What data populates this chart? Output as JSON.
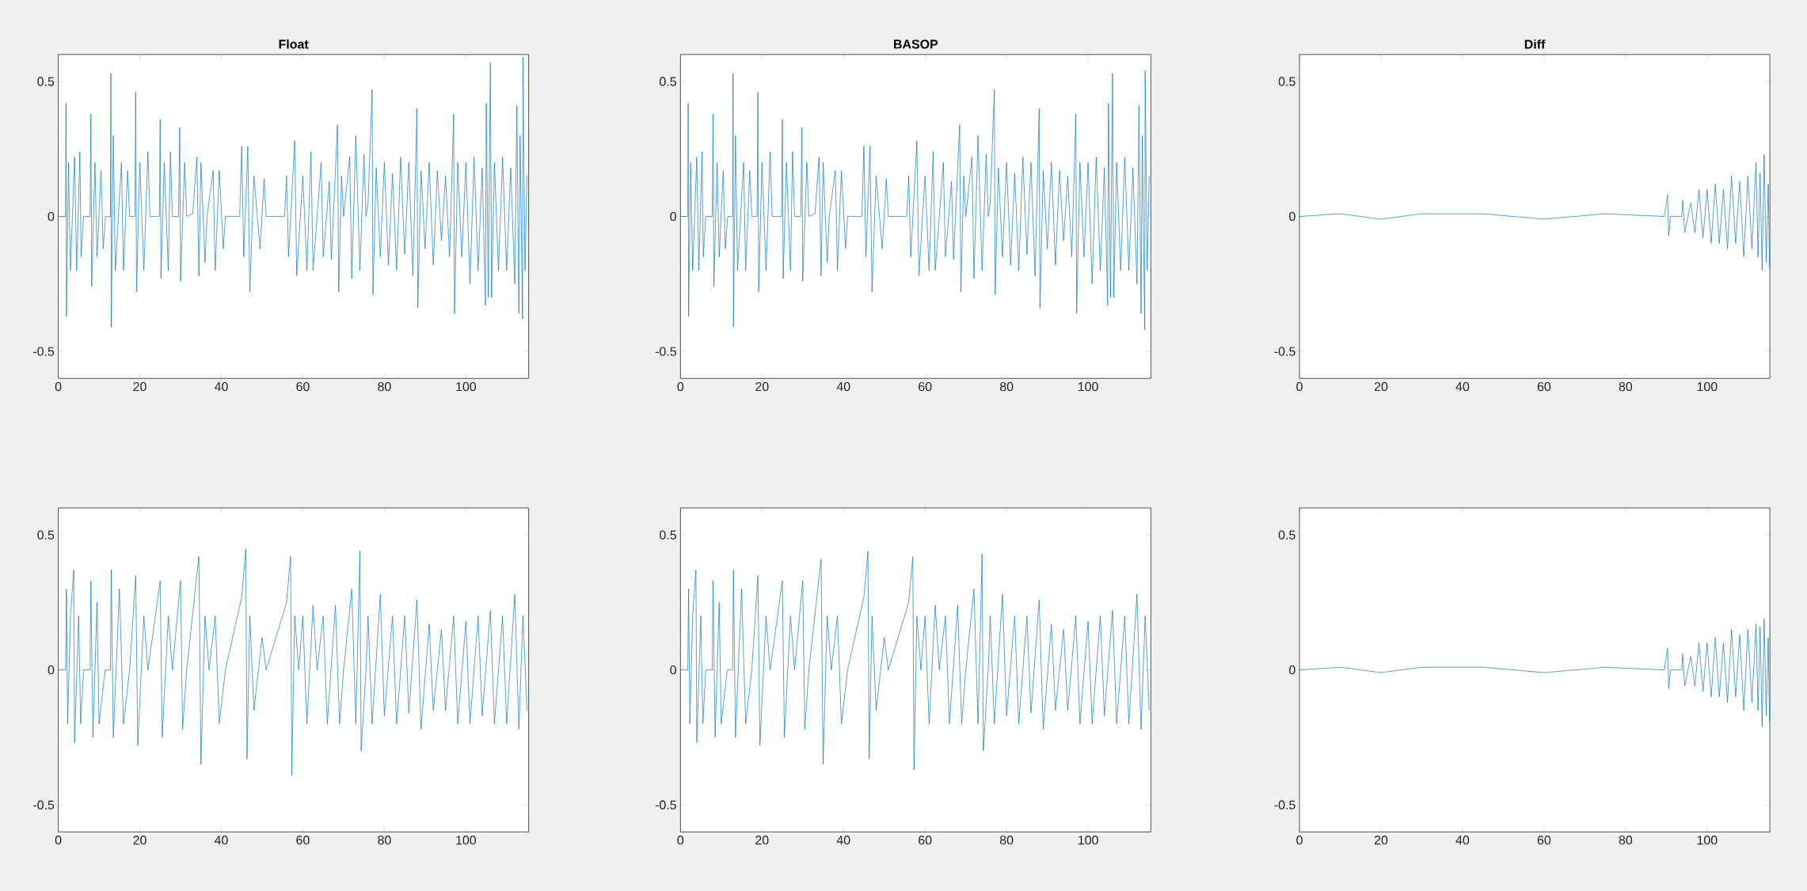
{
  "chart_data": [
    {
      "type": "line",
      "title": "Float",
      "color": "#0072bd",
      "xlim": [
        0,
        115.4
      ],
      "ylim": [
        -0.6,
        0.6
      ],
      "xticks": [
        0,
        20,
        40,
        60,
        80,
        100
      ],
      "yticks": [
        -0.5,
        0,
        0.5
      ],
      "x": [
        0,
        1.8,
        1.9,
        2.0,
        2.5,
        3,
        4,
        4.5,
        5.3,
        5.6,
        6.2,
        7.8,
        8.0,
        8.2,
        9,
        9.5,
        10.5,
        11,
        11.6,
        12.8,
        12.9,
        13.0,
        13.5,
        14,
        15.5,
        16,
        17,
        17.5,
        18.8,
        19,
        19.2,
        20,
        21,
        22,
        22.5,
        24.8,
        25,
        25.2,
        26,
        27,
        27.5,
        28,
        29.5,
        29.8,
        30,
        31,
        31.5,
        33,
        34,
        34.5,
        35,
        36,
        36.5,
        38,
        38.5,
        39.5,
        40.5,
        41,
        44.5,
        45,
        45.5,
        46.5,
        47,
        48,
        49.5,
        50.5,
        51,
        55.5,
        56,
        56.5,
        58,
        58.5,
        60,
        61,
        62,
        62.5,
        63.5,
        64.5,
        65,
        66.5,
        67,
        68.5,
        68.8,
        69.5,
        70,
        71.5,
        72,
        73,
        74,
        75,
        75.5,
        76,
        77,
        77.2,
        78,
        79,
        80,
        81,
        82,
        83,
        84,
        85,
        86,
        87,
        88,
        88.2,
        89,
        90,
        91,
        92,
        93,
        94,
        95,
        96,
        97,
        97.2,
        98,
        99,
        100,
        101,
        102,
        103,
        104,
        104.8,
        105,
        105.5,
        106,
        106.3,
        107,
        108,
        109,
        110,
        111,
        112,
        112.5,
        113,
        113.3,
        113.9,
        114,
        114.5,
        115
      ],
      "values": [
        0,
        0,
        0.42,
        -0.37,
        0.2,
        -0.2,
        0.22,
        -0.2,
        0.24,
        -0.15,
        0,
        0,
        0.38,
        -0.26,
        0.2,
        -0.15,
        0.17,
        -0.12,
        0,
        0,
        0.53,
        -0.41,
        0.3,
        -0.2,
        0.2,
        -0.2,
        0.17,
        0,
        0,
        0.46,
        -0.28,
        0.2,
        -0.2,
        0.24,
        0,
        0,
        0.36,
        -0.23,
        0.2,
        -0.2,
        0.24,
        0,
        0,
        0.33,
        -0.24,
        0.2,
        0,
        0.01,
        0.22,
        -0.22,
        0.2,
        -0.17,
        0,
        0.17,
        -0.2,
        0.17,
        -0.12,
        0,
        0,
        0.26,
        -0.15,
        0.26,
        -0.28,
        0.15,
        -0.12,
        0.14,
        0,
        0,
        0.15,
        -0.15,
        0.28,
        -0.22,
        0.15,
        -0.2,
        0.24,
        -0.2,
        0,
        0.2,
        -0.15,
        0.13,
        -0.16,
        0.34,
        -0.28,
        0.15,
        0,
        0.22,
        -0.23,
        0.3,
        -0.2,
        0.23,
        0,
        0.05,
        0.47,
        -0.29,
        0.18,
        -0.15,
        0.2,
        -0.18,
        0.16,
        -0.2,
        0.22,
        -0.14,
        0.2,
        -0.22,
        0.4,
        -0.34,
        0.17,
        -0.12,
        0.2,
        -0.18,
        0.17,
        -0.09,
        0.15,
        -0.15,
        0.38,
        -0.36,
        0.2,
        -0.15,
        0.2,
        -0.25,
        0.22,
        -0.2,
        0.18,
        -0.33,
        0.42,
        -0.3,
        0.57,
        -0.3,
        0.2,
        -0.2,
        0.22,
        -0.2,
        0.18,
        -0.25,
        0.41,
        -0.36,
        0.3,
        -0.38,
        0.59,
        -0.2,
        0.15
      ]
    },
    {
      "type": "line",
      "title": "BASOP",
      "color": "#0072bd",
      "xlim": [
        0,
        115.4
      ],
      "ylim": [
        -0.6,
        0.6
      ],
      "xticks": [
        0,
        20,
        40,
        60,
        80,
        100
      ],
      "yticks": [
        -0.5,
        0,
        0.5
      ],
      "x": [
        0,
        1.8,
        1.9,
        2.0,
        2.5,
        3,
        4,
        4.5,
        5.3,
        5.6,
        6.2,
        7.8,
        8.0,
        8.2,
        9,
        9.5,
        10.5,
        11,
        11.6,
        12.8,
        12.9,
        13.0,
        13.5,
        14,
        15.5,
        16,
        17,
        17.5,
        18.8,
        19,
        19.2,
        20,
        21,
        22,
        22.5,
        24.8,
        25,
        25.2,
        26,
        27,
        27.5,
        28,
        29.5,
        29.8,
        30,
        31,
        31.5,
        33,
        34,
        34.5,
        35,
        36,
        36.5,
        38,
        38.5,
        39.5,
        40.5,
        41,
        44.5,
        45,
        45.5,
        46.5,
        47,
        48,
        49.5,
        50.5,
        51,
        55.5,
        56,
        56.5,
        58,
        58.5,
        60,
        61,
        62,
        62.5,
        63.5,
        64.5,
        65,
        66.5,
        67,
        68.5,
        68.8,
        69.5,
        70,
        71.5,
        72,
        73,
        74,
        75,
        75.5,
        76,
        77,
        77.2,
        78,
        79,
        80,
        81,
        82,
        83,
        84,
        85,
        86,
        87,
        88,
        88.2,
        89,
        90,
        91,
        92,
        93,
        94,
        95,
        96,
        97,
        97.2,
        98,
        99,
        100,
        101,
        102,
        103,
        104,
        104.8,
        105,
        105.5,
        106,
        106.3,
        107,
        108,
        109,
        110,
        111,
        112,
        112.5,
        113,
        113.3,
        113.9,
        114,
        114.5,
        115
      ],
      "values": [
        0,
        0,
        0.42,
        -0.37,
        0.2,
        -0.2,
        0.22,
        -0.2,
        0.24,
        -0.15,
        0,
        0,
        0.38,
        -0.26,
        0.2,
        -0.15,
        0.17,
        -0.12,
        0,
        0,
        0.53,
        -0.41,
        0.3,
        -0.2,
        0.2,
        -0.2,
        0.17,
        0,
        0,
        0.46,
        -0.28,
        0.2,
        -0.2,
        0.24,
        0,
        0,
        0.36,
        -0.23,
        0.2,
        -0.2,
        0.24,
        0,
        0,
        0.33,
        -0.24,
        0.2,
        0,
        0.01,
        0.22,
        -0.22,
        0.2,
        -0.17,
        0,
        0.17,
        -0.2,
        0.17,
        -0.12,
        0,
        0,
        0.26,
        -0.15,
        0.26,
        -0.28,
        0.15,
        -0.12,
        0.14,
        0,
        0,
        0.15,
        -0.15,
        0.28,
        -0.22,
        0.15,
        -0.2,
        0.24,
        -0.2,
        0,
        0.2,
        -0.15,
        0.13,
        -0.16,
        0.34,
        -0.28,
        0.15,
        0,
        0.22,
        -0.23,
        0.3,
        -0.2,
        0.23,
        0,
        0.05,
        0.47,
        -0.29,
        0.18,
        -0.15,
        0.2,
        -0.18,
        0.16,
        -0.2,
        0.22,
        -0.14,
        0.2,
        -0.22,
        0.4,
        -0.34,
        0.17,
        -0.12,
        0.2,
        -0.18,
        0.17,
        -0.09,
        0.15,
        -0.15,
        0.38,
        -0.36,
        0.2,
        -0.15,
        0.2,
        -0.25,
        0.22,
        -0.2,
        0.18,
        -0.33,
        0.42,
        -0.3,
        0.53,
        -0.3,
        0.2,
        -0.2,
        0.22,
        -0.2,
        0.18,
        -0.25,
        0.41,
        -0.36,
        0.3,
        -0.42,
        0.54,
        -0.2,
        0.15
      ]
    },
    {
      "type": "line",
      "title": "Diff",
      "color": "#0072bd",
      "xlim": [
        0,
        115.4
      ],
      "ylim": [
        -0.6,
        0.6
      ],
      "xticks": [
        0,
        20,
        40,
        60,
        80,
        100
      ],
      "yticks": [
        -0.5,
        0,
        0.5
      ],
      "x": [
        0,
        10,
        20,
        30,
        45,
        60,
        75,
        89.5,
        90.3,
        90.6,
        91,
        93.8,
        94,
        94.5,
        96,
        97,
        98,
        99,
        100,
        101,
        102,
        103,
        104,
        105,
        106,
        107,
        108,
        109,
        110,
        111,
        112,
        112.5,
        113,
        113.5,
        114,
        114.5,
        115,
        115.3
      ],
      "values": [
        0,
        0.01,
        -0.01,
        0.01,
        0.01,
        -0.01,
        0.01,
        0,
        0.08,
        -0.07,
        0,
        0,
        0.06,
        -0.06,
        0.05,
        -0.06,
        0.1,
        -0.08,
        0.1,
        -0.1,
        0.12,
        -0.1,
        0.1,
        -0.12,
        0.15,
        -0.1,
        0.13,
        -0.15,
        0.15,
        -0.12,
        0.2,
        -0.15,
        0.16,
        -0.2,
        0.23,
        -0.17,
        0.12,
        -0.19
      ]
    },
    {
      "type": "line",
      "color": "#0072bd",
      "xlim": [
        0,
        115.4
      ],
      "ylim": [
        -0.6,
        0.6
      ],
      "xticks": [
        0,
        20,
        40,
        60,
        80,
        100
      ],
      "yticks": [
        -0.5,
        0,
        0.5
      ],
      "x": [
        0,
        1.8,
        2,
        2.3,
        3,
        3.8,
        4,
        5,
        5.5,
        6.2,
        7.8,
        8,
        8.5,
        9.5,
        10,
        11.5,
        12.8,
        13,
        13.5,
        15,
        16,
        17.5,
        19,
        19.5,
        21,
        22,
        25,
        25.5,
        27,
        28,
        30,
        30.5,
        31.5,
        34.5,
        35,
        36,
        37,
        38.5,
        39.5,
        41,
        45,
        46,
        46.3,
        47,
        48,
        50,
        51,
        56,
        57,
        57.3,
        58,
        59,
        60,
        61,
        62.5,
        63.5,
        65,
        66,
        68,
        69,
        70,
        72,
        73,
        74,
        74.3,
        75.5,
        76,
        77,
        79,
        80,
        82,
        83,
        85,
        86,
        88,
        89,
        91,
        92,
        94,
        95,
        97,
        98,
        100,
        101,
        103,
        104,
        106,
        107,
        109,
        110,
        112,
        113,
        114,
        115
      ],
      "values": [
        0,
        0,
        0.3,
        -0.2,
        0.2,
        0.37,
        -0.27,
        0.2,
        -0.2,
        0,
        0,
        0.33,
        -0.25,
        0.25,
        -0.2,
        0,
        0,
        0.37,
        -0.25,
        0.3,
        -0.2,
        0,
        0.35,
        -0.28,
        0.2,
        0,
        0.33,
        -0.25,
        0.2,
        0,
        0.33,
        -0.22,
        0,
        0.42,
        -0.35,
        0.2,
        0,
        0.2,
        -0.2,
        0,
        0.27,
        0.45,
        -0.33,
        0.2,
        -0.15,
        0.12,
        0,
        0.25,
        0.42,
        -0.39,
        0.2,
        0,
        0.2,
        -0.2,
        0.24,
        0,
        0.2,
        -0.2,
        0.24,
        -0.2,
        0,
        0.3,
        -0.2,
        0.44,
        -0.3,
        0,
        0.2,
        -0.2,
        0.28,
        -0.17,
        0.2,
        -0.2,
        0.2,
        -0.16,
        0.26,
        -0.22,
        0.17,
        -0.15,
        0.15,
        -0.15,
        0.2,
        -0.2,
        0.18,
        -0.2,
        0.2,
        -0.17,
        0.22,
        -0.2,
        0.2,
        -0.2,
        0.28,
        -0.22,
        0.2,
        -0.15
      ]
    },
    {
      "type": "line",
      "color": "#0072bd",
      "xlim": [
        0,
        115.4
      ],
      "ylim": [
        -0.6,
        0.6
      ],
      "xticks": [
        0,
        20,
        40,
        60,
        80,
        100
      ],
      "yticks": [
        -0.5,
        0,
        0.5
      ],
      "x": [
        0,
        1.8,
        2,
        2.3,
        3,
        3.8,
        4,
        5,
        5.5,
        6.2,
        7.8,
        8,
        8.5,
        9.5,
        10,
        11.5,
        12.8,
        13,
        13.5,
        15,
        16,
        17.5,
        19,
        19.5,
        21,
        22,
        25,
        25.5,
        27,
        28,
        30,
        30.5,
        31.5,
        34.5,
        35,
        36,
        37,
        38.5,
        39.5,
        41,
        45,
        46,
        46.3,
        47,
        48,
        50,
        51,
        56,
        57,
        57.3,
        58,
        59,
        60,
        61,
        62.5,
        63.5,
        65,
        66,
        68,
        69,
        70,
        72,
        73,
        74,
        74.3,
        75.5,
        76,
        77,
        79,
        80,
        82,
        83,
        85,
        86,
        88,
        89,
        91,
        92,
        94,
        95,
        97,
        98,
        100,
        101,
        103,
        104,
        106,
        107,
        109,
        110,
        112,
        113,
        114,
        115
      ],
      "values": [
        0,
        0,
        0.3,
        -0.2,
        0.2,
        0.37,
        -0.27,
        0.2,
        -0.2,
        0,
        0,
        0.33,
        -0.25,
        0.25,
        -0.2,
        0,
        0,
        0.37,
        -0.25,
        0.3,
        -0.2,
        0,
        0.35,
        -0.28,
        0.2,
        0,
        0.33,
        -0.25,
        0.2,
        0,
        0.33,
        -0.22,
        0,
        0.41,
        -0.35,
        0.2,
        0,
        0.2,
        -0.2,
        0,
        0.27,
        0.44,
        -0.33,
        0.2,
        -0.15,
        0.12,
        0,
        0.25,
        0.42,
        -0.37,
        0.2,
        0,
        0.2,
        -0.2,
        0.24,
        0,
        0.2,
        -0.2,
        0.24,
        -0.2,
        0,
        0.3,
        -0.2,
        0.43,
        -0.3,
        0,
        0.2,
        -0.2,
        0.28,
        -0.17,
        0.2,
        -0.2,
        0.2,
        -0.16,
        0.26,
        -0.22,
        0.17,
        -0.15,
        0.15,
        -0.15,
        0.2,
        -0.2,
        0.18,
        -0.2,
        0.2,
        -0.17,
        0.22,
        -0.2,
        0.2,
        -0.2,
        0.28,
        -0.22,
        0.2,
        -0.15
      ]
    },
    {
      "type": "line",
      "color": "#0072bd",
      "xlim": [
        0,
        115.4
      ],
      "ylim": [
        -0.6,
        0.6
      ],
      "xticks": [
        0,
        20,
        40,
        60,
        80,
        100
      ],
      "yticks": [
        -0.5,
        0,
        0.5
      ],
      "x": [
        0,
        10,
        20,
        30,
        45,
        60,
        75,
        89.5,
        90.3,
        90.6,
        91,
        93.8,
        94,
        94.5,
        96,
        97,
        98,
        99,
        100,
        101,
        102,
        103,
        104,
        105,
        106,
        107,
        108,
        109,
        110,
        111,
        112,
        112.5,
        113,
        113.5,
        114,
        114.5,
        115,
        115.3
      ],
      "values": [
        0,
        0.01,
        -0.01,
        0.01,
        0.01,
        -0.01,
        0.01,
        0,
        0.08,
        -0.07,
        0,
        0,
        0.06,
        -0.06,
        0.05,
        -0.06,
        0.1,
        -0.08,
        0.1,
        -0.1,
        0.12,
        -0.1,
        0.1,
        -0.12,
        0.15,
        -0.1,
        0.13,
        -0.15,
        0.15,
        -0.12,
        0.17,
        -0.15,
        0.16,
        -0.21,
        0.19,
        -0.17,
        0.12,
        -0.19
      ]
    }
  ]
}
